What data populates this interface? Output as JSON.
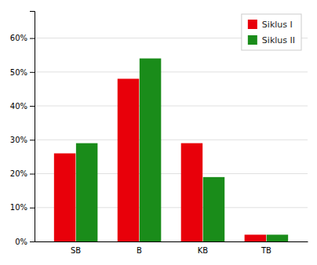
{
  "chart_data": {
    "type": "bar",
    "categories": [
      "SB",
      "B",
      "KB",
      "TB"
    ],
    "series": [
      {
        "name": "Siklus I",
        "color": "#e8000a",
        "values": [
          0.26,
          0.48,
          0.29,
          0.02
        ]
      },
      {
        "name": "Siklus II",
        "color": "#1a8c1a",
        "values": [
          0.29,
          0.54,
          0.19,
          0.02
        ]
      }
    ],
    "ylim": [
      0,
      0.68
    ],
    "yticks": [
      {
        "value": 0.0,
        "label": "0%"
      },
      {
        "value": 0.1,
        "label": "10%"
      },
      {
        "value": 0.2,
        "label": "20%"
      },
      {
        "value": 0.3,
        "label": "30%"
      },
      {
        "value": 0.4,
        "label": "40%"
      },
      {
        "value": 0.5,
        "label": "50%"
      },
      {
        "value": 0.6,
        "label": "60%"
      }
    ],
    "grid": true,
    "legend": "upper right"
  }
}
